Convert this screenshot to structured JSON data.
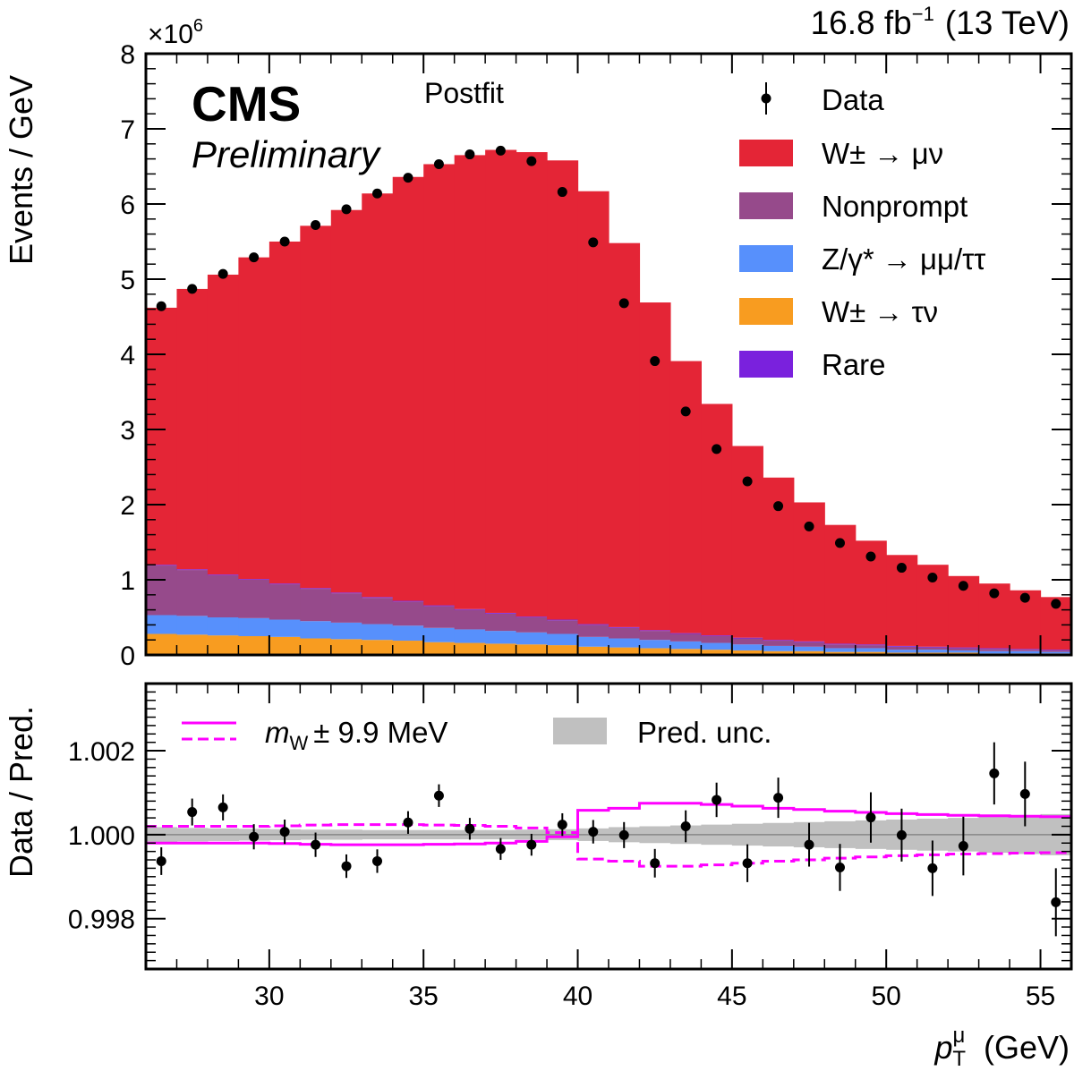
{
  "chart_data": [
    {
      "type": "bar",
      "subtype": "stacked-histogram-with-points",
      "panel": "main",
      "experiment": "CMS",
      "status": "Preliminary",
      "fit_label": "Postfit",
      "lumi_label": "16.8 fb",
      "lumi_exp": "−1",
      "energy_label": "(13 TeV)",
      "y_multiplier": "×10",
      "y_multiplier_exp": "6",
      "ylabel": "Events / GeV",
      "ylim": [
        0,
        8
      ],
      "yticks": [
        "0",
        "1",
        "2",
        "3",
        "4",
        "5",
        "6",
        "7",
        "8"
      ],
      "xlim": [
        26,
        56
      ],
      "bin_edges": [
        26,
        27,
        28,
        29,
        30,
        31,
        32,
        33,
        34,
        35,
        36,
        37,
        38,
        39,
        40,
        41,
        42,
        43,
        44,
        45,
        46,
        47,
        48,
        49,
        50,
        51,
        52,
        53,
        54,
        55,
        56
      ],
      "series": [
        {
          "key": "wtau",
          "name": "W± → τν",
          "color": "#f89c20",
          "values": [
            0.28,
            0.27,
            0.26,
            0.25,
            0.24,
            0.22,
            0.21,
            0.2,
            0.19,
            0.17,
            0.16,
            0.15,
            0.14,
            0.13,
            0.11,
            0.1,
            0.09,
            0.08,
            0.07,
            0.06,
            0.05,
            0.05,
            0.04,
            0.04,
            0.03,
            0.03,
            0.03,
            0.02,
            0.02,
            0.02
          ]
        },
        {
          "key": "zgamma",
          "name": "Z/γ* → μμ/ττ",
          "color": "#5790fc",
          "values": [
            0.25,
            0.25,
            0.24,
            0.24,
            0.23,
            0.23,
            0.22,
            0.21,
            0.2,
            0.19,
            0.18,
            0.17,
            0.16,
            0.15,
            0.13,
            0.12,
            0.11,
            0.1,
            0.09,
            0.08,
            0.07,
            0.06,
            0.05,
            0.05,
            0.04,
            0.04,
            0.03,
            0.03,
            0.03,
            0.02
          ]
        },
        {
          "key": "nonprompt",
          "name": "Nonprompt",
          "color": "#964a8b",
          "values": [
            0.66,
            0.61,
            0.56,
            0.51,
            0.47,
            0.43,
            0.39,
            0.35,
            0.32,
            0.29,
            0.26,
            0.23,
            0.2,
            0.18,
            0.16,
            0.14,
            0.12,
            0.1,
            0.09,
            0.08,
            0.07,
            0.06,
            0.05,
            0.04,
            0.04,
            0.03,
            0.03,
            0.03,
            0.02,
            0.02
          ]
        },
        {
          "key": "rare",
          "name": "Rare",
          "color": "#7a21dd",
          "values": [
            0.01,
            0.01,
            0.01,
            0.01,
            0.01,
            0.01,
            0.01,
            0.01,
            0.01,
            0.01,
            0.01,
            0.01,
            0.01,
            0.01,
            0.01,
            0.01,
            0.01,
            0.01,
            0.01,
            0.01,
            0.01,
            0.01,
            0.01,
            0.01,
            0.01,
            0.01,
            0.01,
            0.01,
            0.01,
            0.01
          ]
        },
        {
          "key": "wmu",
          "name": "W± → μν",
          "color": "#e42536",
          "values": [
            3.42,
            3.73,
            3.99,
            4.28,
            4.55,
            4.82,
            5.09,
            5.37,
            5.64,
            5.87,
            6.04,
            6.16,
            6.18,
            6.11,
            5.76,
            5.11,
            4.36,
            3.62,
            3.08,
            2.55,
            2.16,
            1.85,
            1.58,
            1.38,
            1.21,
            1.09,
            0.95,
            0.86,
            0.78,
            0.7
          ]
        }
      ],
      "data": {
        "name": "Data",
        "x": [
          26.5,
          27.5,
          28.5,
          29.5,
          30.5,
          31.5,
          32.5,
          33.5,
          34.5,
          35.5,
          36.5,
          37.5,
          38.5,
          39.5,
          40.5,
          41.5,
          42.5,
          43.5,
          44.5,
          45.5,
          46.5,
          47.5,
          48.5,
          49.5,
          50.5,
          51.5,
          52.5,
          53.5,
          54.5,
          55.5
        ],
        "y": [
          4.64,
          4.87,
          5.07,
          5.29,
          5.5,
          5.72,
          5.93,
          6.14,
          6.35,
          6.53,
          6.66,
          6.71,
          6.57,
          6.16,
          5.49,
          4.68,
          3.91,
          3.24,
          2.74,
          2.31,
          1.98,
          1.71,
          1.49,
          1.31,
          1.16,
          1.03,
          0.92,
          0.82,
          0.76,
          0.68
        ]
      },
      "legend_order": [
        "data",
        "wmu",
        "nonprompt",
        "zgamma",
        "wtau",
        "rare"
      ],
      "legend_position": "top-right"
    },
    {
      "type": "scatter",
      "subtype": "ratio",
      "panel": "ratio",
      "ylabel": "Data / Pred.",
      "xlabel_main": "p",
      "xlabel_sub": "T",
      "xlabel_sup": "μ",
      "xlabel_unit": "(GeV)",
      "xlim": [
        26,
        56
      ],
      "xticks": [
        "30",
        "35",
        "40",
        "45",
        "50",
        "55"
      ],
      "ylim": [
        0.9968,
        1.0036
      ],
      "yticks": [
        "0.998",
        "1.000",
        "1.002"
      ],
      "points": {
        "x": [
          26.5,
          27.5,
          28.5,
          29.5,
          30.5,
          31.5,
          32.5,
          33.5,
          34.5,
          35.5,
          36.5,
          37.5,
          38.5,
          39.5,
          40.5,
          41.5,
          42.5,
          43.5,
          44.5,
          45.5,
          46.5,
          47.5,
          48.5,
          49.5,
          50.5,
          51.5,
          52.5,
          53.5,
          54.5,
          55.5
        ],
        "y": [
          0.99937,
          1.00054,
          1.00065,
          0.99995,
          1.00007,
          0.99976,
          0.99925,
          0.99937,
          1.00029,
          1.00093,
          1.00014,
          0.99966,
          0.99976,
          1.00024,
          1.00007,
          0.99999,
          0.99932,
          1.0002,
          1.00083,
          0.99932,
          1.00088,
          0.99976,
          0.99922,
          1.00041,
          0.99999,
          0.9992,
          0.99973,
          1.00146,
          1.00097,
          0.99839
        ],
        "err": [
          0.00033,
          0.00032,
          0.00031,
          0.0003,
          0.00029,
          0.00029,
          0.00028,
          0.00028,
          0.00027,
          0.00027,
          0.00026,
          0.00026,
          0.00026,
          0.00027,
          0.00028,
          0.00031,
          0.00034,
          0.00038,
          0.00041,
          0.00045,
          0.00048,
          0.00052,
          0.00056,
          0.0006,
          0.00063,
          0.00066,
          0.0007,
          0.00074,
          0.00077,
          0.00081
        ]
      },
      "pred_unc": {
        "name": "Pred. unc.",
        "color": "#c0c0c0",
        "half_width": [
          0.00018,
          0.00016,
          0.00015,
          0.00014,
          0.00013,
          0.00012,
          0.00012,
          0.00011,
          0.00011,
          0.00011,
          0.00011,
          0.00011,
          0.00012,
          0.00013,
          0.00015,
          0.00018,
          0.0002,
          0.00022,
          0.00024,
          0.00026,
          0.00028,
          0.0003,
          0.00032,
          0.00034,
          0.00036,
          0.00038,
          0.0004,
          0.00043,
          0.00046,
          0.00049
        ]
      },
      "mw_band": {
        "name_italic": "m",
        "name_sub": "W",
        "name_rest": "± 9.9 MeV",
        "color": "#ff00ff",
        "up": [
          0.9998,
          0.9998,
          0.9998,
          0.9998,
          0.99979,
          0.99977,
          0.99976,
          0.99976,
          0.99976,
          0.99977,
          0.99978,
          0.9998,
          0.99984,
          0.99995,
          1.00058,
          1.00063,
          1.00075,
          1.00075,
          1.00072,
          1.00068,
          1.00063,
          1.0006,
          1.00056,
          1.00053,
          1.0005,
          1.00048,
          1.00046,
          1.00045,
          1.00044,
          1.00043
        ],
        "down": [
          1.0002,
          1.0002,
          1.0002,
          1.0002,
          1.00021,
          1.00023,
          1.00024,
          1.00024,
          1.00024,
          1.00023,
          1.00022,
          1.0002,
          1.00016,
          1.00005,
          0.99942,
          0.99937,
          0.99925,
          0.99925,
          0.99928,
          0.99932,
          0.99937,
          0.9994,
          0.99944,
          0.99947,
          0.9995,
          0.99952,
          0.99954,
          0.99955,
          0.99956,
          0.99957
        ]
      }
    }
  ]
}
